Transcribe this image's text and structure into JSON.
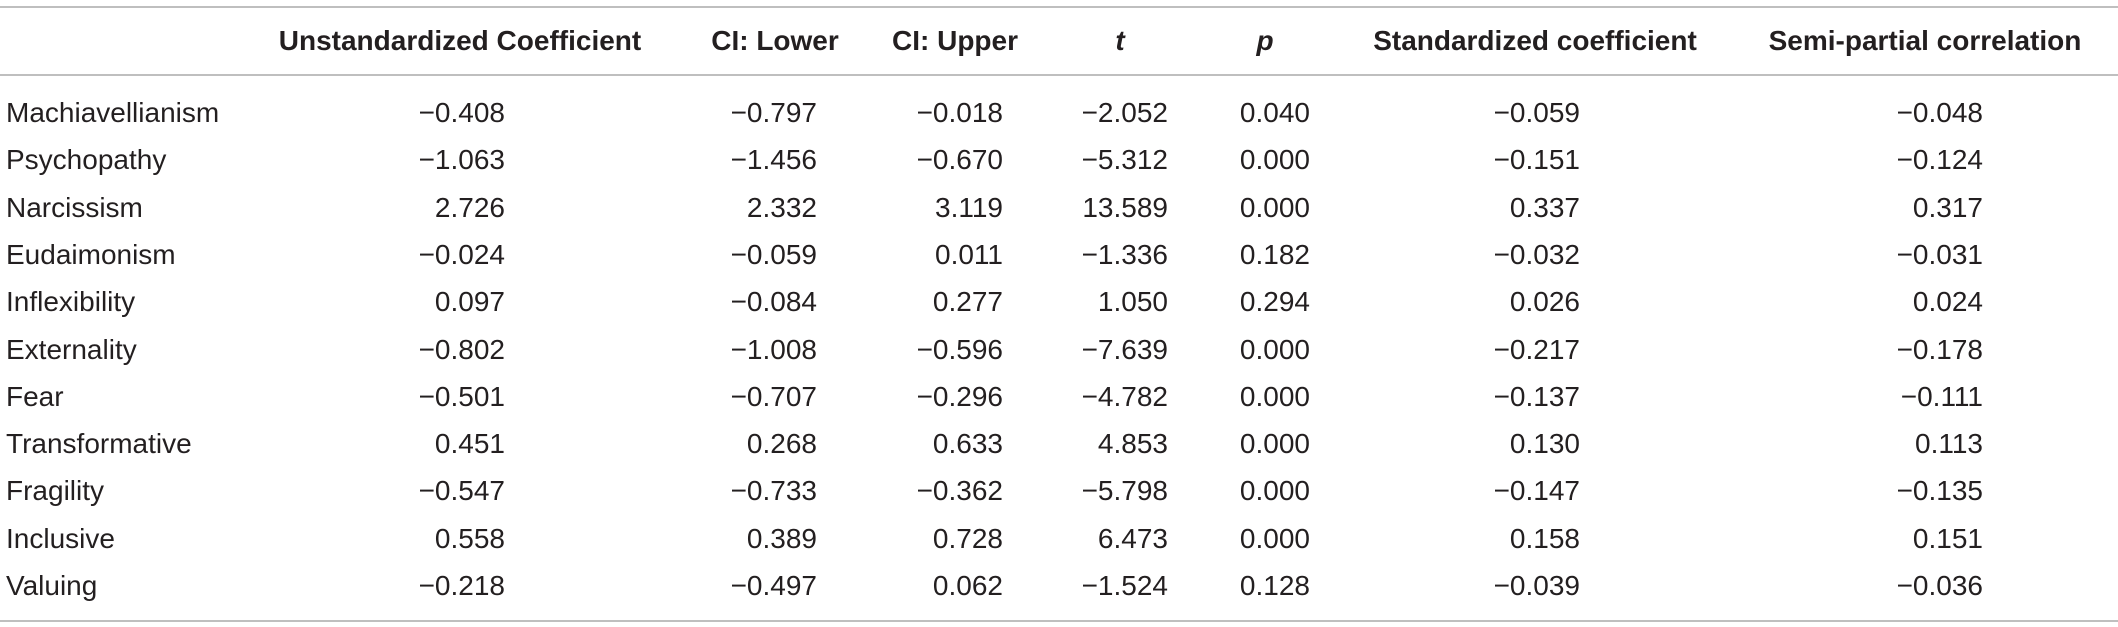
{
  "table": {
    "headers": [
      "",
      "Unstandardized Coefficient",
      "CI: Lower",
      "CI: Upper",
      "t",
      "p",
      "Standardized coefficient",
      "Semi-partial correlation"
    ],
    "rows": [
      [
        "Machiavellianism",
        "−0.408",
        "−0.797",
        "−0.018",
        "−2.052",
        "0.040",
        "−0.059",
        "−0.048"
      ],
      [
        "Psychopathy",
        "−1.063",
        "−1.456",
        "−0.670",
        "−5.312",
        "0.000",
        "−0.151",
        "−0.124"
      ],
      [
        "Narcissism",
        "2.726",
        "2.332",
        "3.119",
        "13.589",
        "0.000",
        "0.337",
        "0.317"
      ],
      [
        "Eudaimonism",
        "−0.024",
        "−0.059",
        "0.011",
        "−1.336",
        "0.182",
        "−0.032",
        "−0.031"
      ],
      [
        "Inflexibility",
        "0.097",
        "−0.084",
        "0.277",
        "1.050",
        "0.294",
        "0.026",
        "0.024"
      ],
      [
        "Externality",
        "−0.802",
        "−1.008",
        "−0.596",
        "−7.639",
        "0.000",
        "−0.217",
        "−0.178"
      ],
      [
        "Fear",
        "−0.501",
        "−0.707",
        "−0.296",
        "−4.782",
        "0.000",
        "−0.137",
        "−0.111"
      ],
      [
        "Transformative",
        "0.451",
        "0.268",
        "0.633",
        "4.853",
        "0.000",
        "0.130",
        "0.113"
      ],
      [
        "Fragility",
        "−0.547",
        "−0.733",
        "−0.362",
        "−5.798",
        "0.000",
        "−0.147",
        "−0.135"
      ],
      [
        "Inclusive",
        "0.558",
        "0.389",
        "0.728",
        "6.473",
        "0.000",
        "0.158",
        "0.151"
      ],
      [
        "Valuing",
        "−0.218",
        "−0.497",
        "0.062",
        "−1.524",
        "0.128",
        "−0.039",
        "−0.036"
      ]
    ]
  }
}
